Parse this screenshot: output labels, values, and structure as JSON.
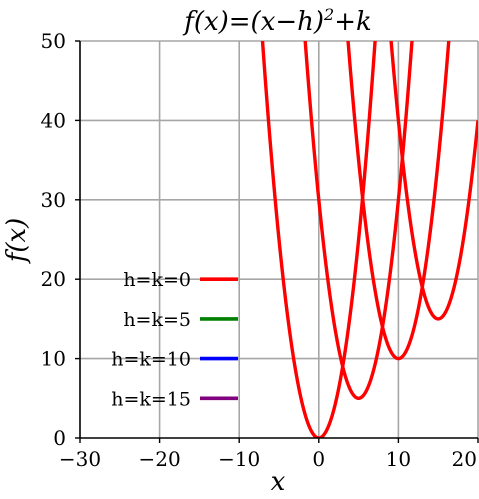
{
  "chart_data": {
    "type": "line",
    "title": "f(x)=(x−h)²+k",
    "title_parts": {
      "before_sup": "f(x)=(x−h)",
      "sup": "2",
      "after_sup": "+k"
    },
    "xlabel": "x",
    "ylabel": "f(x)",
    "xlim": [
      -30,
      20
    ],
    "ylim": [
      0,
      50
    ],
    "x_ticks": [
      -30,
      -20,
      -10,
      0,
      10,
      20
    ],
    "x_tick_labels": [
      "−30",
      "−20",
      "−10",
      "0",
      "10",
      "20"
    ],
    "y_ticks": [
      0,
      10,
      20,
      30,
      40,
      50
    ],
    "y_tick_labels": [
      "0",
      "10",
      "20",
      "30",
      "40",
      "50"
    ],
    "grid": true,
    "legend_position": "left, inside plot",
    "series": [
      {
        "name": "h=k=0",
        "h": 0,
        "k": 0,
        "legend_color": "#ff0000"
      },
      {
        "name": "h=k=5",
        "h": 5,
        "k": 5,
        "legend_color": "#008000"
      },
      {
        "name": "h=k=10",
        "h": 10,
        "k": 10,
        "legend_color": "#0000ff"
      },
      {
        "name": "h=k=15",
        "h": 15,
        "k": 15,
        "legend_color": "#800080"
      }
    ],
    "curve_color": "#ff0000",
    "grid_color": "#a6a6a6"
  }
}
